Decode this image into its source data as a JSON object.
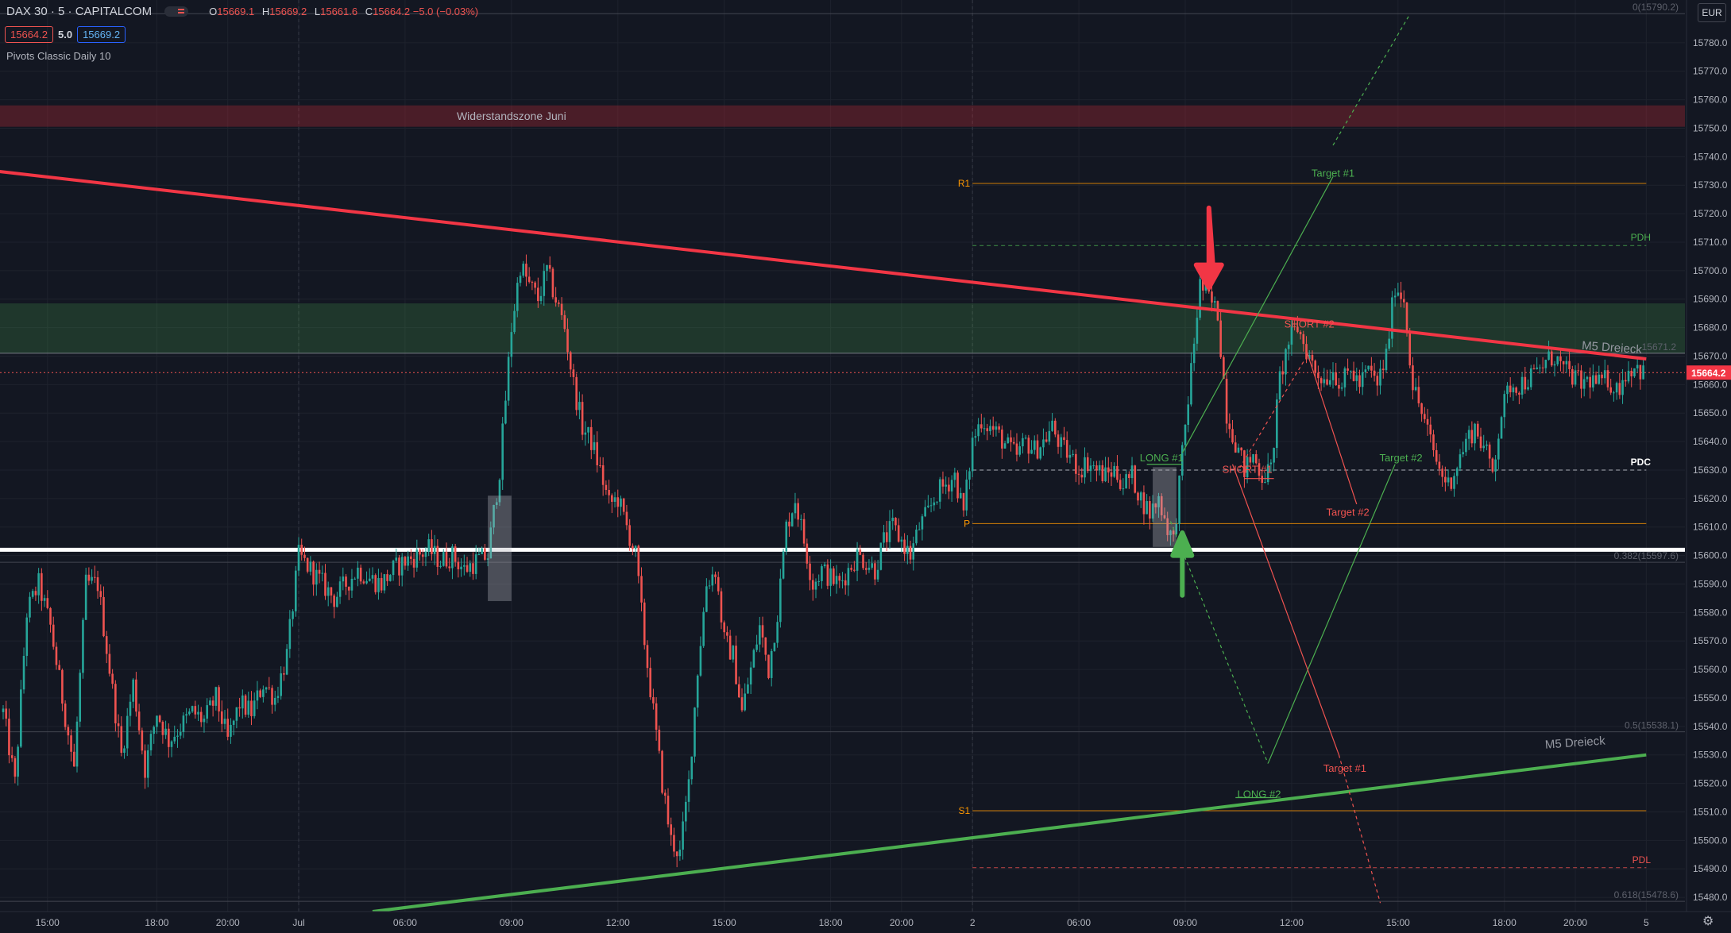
{
  "header": {
    "symbol": "DAX 30 · 5 · CAPITALCOM",
    "open_label": "O",
    "open": "15669.1",
    "high_label": "H",
    "high": "15669.2",
    "low_label": "L",
    "low": "15661.6",
    "close_label": "C",
    "close": "15664.2",
    "change": "−5.0 (−0.03%)",
    "sell": "15664.2",
    "spread": "5.0",
    "buy": "15669.2",
    "indicator": "Pivots Classic Daily 10",
    "currency": "EUR"
  },
  "colors": {
    "background": "#131722",
    "up": "#26a69a",
    "down": "#ef5350",
    "trend_down": "#f23645",
    "trend_up": "#4caf50",
    "pivot": "#ff9800"
  },
  "chart_data": {
    "type": "candlestick",
    "ylim": [
      15475.0,
      15795.0
    ],
    "y_ticks": [
      15480,
      15490,
      15500,
      15510,
      15520,
      15530,
      15540,
      15550,
      15560,
      15570,
      15580,
      15590,
      15600,
      15610,
      15620,
      15630,
      15640,
      15650,
      15660,
      15670,
      15680,
      15690,
      15700,
      15710,
      15720,
      15730,
      15740,
      15750,
      15760,
      15770,
      15780
    ],
    "x_ticks": [
      {
        "bar": 15,
        "label": "15:00"
      },
      {
        "bar": 52,
        "label": "18:00"
      },
      {
        "bar": 76,
        "label": "20:00"
      },
      {
        "bar": 100,
        "label": "Jul"
      },
      {
        "bar": 136,
        "label": "06:00"
      },
      {
        "bar": 172,
        "label": "09:00"
      },
      {
        "bar": 208,
        "label": "12:00"
      },
      {
        "bar": 244,
        "label": "15:00"
      },
      {
        "bar": 280,
        "label": "18:00"
      },
      {
        "bar": 304,
        "label": "20:00"
      },
      {
        "bar": 328,
        "label": "2"
      },
      {
        "bar": 364,
        "label": "06:00"
      },
      {
        "bar": 400,
        "label": "09:00"
      },
      {
        "bar": 436,
        "label": "12:00"
      },
      {
        "bar": 472,
        "label": "15:00"
      },
      {
        "bar": 508,
        "label": "18:00"
      },
      {
        "bar": 532,
        "label": "20:00"
      },
      {
        "bar": 556,
        "label": "5"
      }
    ],
    "price_path": [
      [
        0,
        15545
      ],
      [
        4,
        15520
      ],
      [
        8,
        15580
      ],
      [
        12,
        15590
      ],
      [
        16,
        15575
      ],
      [
        20,
        15550
      ],
      [
        24,
        15525
      ],
      [
        28,
        15590
      ],
      [
        32,
        15590
      ],
      [
        36,
        15560
      ],
      [
        40,
        15530
      ],
      [
        44,
        15555
      ],
      [
        48,
        15525
      ],
      [
        52,
        15545
      ],
      [
        56,
        15535
      ],
      [
        60,
        15540
      ],
      [
        64,
        15545
      ],
      [
        68,
        15542
      ],
      [
        72,
        15550
      ],
      [
        76,
        15535
      ],
      [
        80,
        15548
      ],
      [
        84,
        15545
      ],
      [
        88,
        15555
      ],
      [
        92,
        15550
      ],
      [
        96,
        15565
      ],
      [
        100,
        15600
      ],
      [
        104,
        15595
      ],
      [
        108,
        15590
      ],
      [
        112,
        15585
      ],
      [
        116,
        15590
      ],
      [
        120,
        15595
      ],
      [
        124,
        15592
      ],
      [
        128,
        15590
      ],
      [
        132,
        15595
      ],
      [
        136,
        15598
      ],
      [
        140,
        15600
      ],
      [
        144,
        15602
      ],
      [
        148,
        15598
      ],
      [
        152,
        15600
      ],
      [
        156,
        15595
      ],
      [
        160,
        15598
      ],
      [
        164,
        15600
      ],
      [
        168,
        15630
      ],
      [
        172,
        15680
      ],
      [
        175,
        15702
      ],
      [
        178,
        15695
      ],
      [
        181,
        15690
      ],
      [
        184,
        15700
      ],
      [
        187,
        15690
      ],
      [
        190,
        15680
      ],
      [
        193,
        15660
      ],
      [
        196,
        15645
      ],
      [
        199,
        15640
      ],
      [
        202,
        15630
      ],
      [
        205,
        15618
      ],
      [
        208,
        15620
      ],
      [
        211,
        15610
      ],
      [
        214,
        15600
      ],
      [
        217,
        15570
      ],
      [
        220,
        15545
      ],
      [
        223,
        15520
      ],
      [
        226,
        15500
      ],
      [
        229,
        15495
      ],
      [
        232,
        15520
      ],
      [
        235,
        15560
      ],
      [
        238,
        15590
      ],
      [
        241,
        15595
      ],
      [
        244,
        15570
      ],
      [
        247,
        15565
      ],
      [
        250,
        15545
      ],
      [
        253,
        15560
      ],
      [
        256,
        15575
      ],
      [
        259,
        15560
      ],
      [
        262,
        15580
      ],
      [
        265,
        15610
      ],
      [
        268,
        15620
      ],
      [
        271,
        15605
      ],
      [
        274,
        15590
      ],
      [
        277,
        15595
      ],
      [
        280,
        15592
      ],
      [
        283,
        15590
      ],
      [
        286,
        15595
      ],
      [
        289,
        15600
      ],
      [
        292,
        15598
      ],
      [
        295,
        15595
      ],
      [
        298,
        15605
      ],
      [
        301,
        15610
      ],
      [
        304,
        15605
      ],
      [
        307,
        15600
      ],
      [
        310,
        15610
      ],
      [
        313,
        15615
      ],
      [
        316,
        15622
      ],
      [
        319,
        15625
      ],
      [
        322,
        15628
      ],
      [
        325,
        15615
      ],
      [
        328,
        15640
      ],
      [
        331,
        15648
      ],
      [
        334,
        15645
      ],
      [
        337,
        15642
      ],
      [
        340,
        15638
      ],
      [
        343,
        15635
      ],
      [
        346,
        15640
      ],
      [
        349,
        15637
      ],
      [
        352,
        15640
      ],
      [
        355,
        15645
      ],
      [
        358,
        15638
      ],
      [
        361,
        15635
      ],
      [
        364,
        15630
      ],
      [
        367,
        15633
      ],
      [
        370,
        15630
      ],
      [
        373,
        15628
      ],
      [
        376,
        15630
      ],
      [
        379,
        15625
      ],
      [
        382,
        15628
      ],
      [
        385,
        15620
      ],
      [
        388,
        15615
      ],
      [
        391,
        15620
      ],
      [
        394,
        15610
      ],
      [
        396,
        15605
      ],
      [
        399,
        15635
      ],
      [
        402,
        15665
      ],
      [
        405,
        15695
      ],
      [
        408,
        15690
      ],
      [
        411,
        15685
      ],
      [
        414,
        15650
      ],
      [
        417,
        15640
      ],
      [
        420,
        15630
      ],
      [
        423,
        15635
      ],
      [
        426,
        15628
      ],
      [
        429,
        15630
      ],
      [
        432,
        15662
      ],
      [
        435,
        15675
      ],
      [
        438,
        15680
      ],
      [
        441,
        15672
      ],
      [
        444,
        15665
      ],
      [
        447,
        15662
      ],
      [
        450,
        15665
      ],
      [
        453,
        15660
      ],
      [
        456,
        15665
      ],
      [
        459,
        15660
      ],
      [
        462,
        15665
      ],
      [
        465,
        15660
      ],
      [
        468,
        15670
      ],
      [
        471,
        15695
      ],
      [
        474,
        15690
      ],
      [
        477,
        15660
      ],
      [
        480,
        15650
      ],
      [
        483,
        15640
      ],
      [
        486,
        15630
      ],
      [
        489,
        15625
      ],
      [
        492,
        15632
      ],
      [
        495,
        15640
      ],
      [
        498,
        15645
      ],
      [
        501,
        15638
      ],
      [
        504,
        15630
      ],
      [
        507,
        15650
      ],
      [
        510,
        15660
      ],
      [
        513,
        15660
      ],
      [
        516,
        15662
      ],
      [
        519,
        15664
      ],
      [
        522,
        15668
      ],
      [
        525,
        15670
      ],
      [
        528,
        15665
      ],
      [
        531,
        15663
      ],
      [
        534,
        15660
      ],
      [
        537,
        15662
      ],
      [
        540,
        15660
      ],
      [
        543,
        15662
      ],
      [
        546,
        15658
      ],
      [
        549,
        15664
      ],
      [
        552,
        15667
      ],
      [
        555,
        15664
      ]
    ],
    "horizontal_levels": [
      {
        "label": "R1",
        "value": 15730.6
      },
      {
        "label": "PDH",
        "value": 15708.8
      },
      {
        "label": "PDC",
        "value": 15630.0
      },
      {
        "label": "P",
        "value": 15611.2
      },
      {
        "label": "S1",
        "value": 15510.4
      },
      {
        "label": "PDL",
        "value": 15490.4
      }
    ],
    "fib_levels": [
      {
        "label": "0(15790.2)",
        "value": 15790.2
      },
      {
        "label": "0.382(15597.6)",
        "value": 15597.6
      },
      {
        "label": "0.5(15538.1)",
        "value": 15538.1
      },
      {
        "label": "0.618(15478.6)",
        "value": 15478.6
      }
    ],
    "zones": [
      {
        "label": "Widerstandszone Juni",
        "top": 15758.0,
        "bottom": 15750.5
      },
      {
        "label": "",
        "top": 15688.5,
        "bottom": 15671.0
      }
    ],
    "trendlines": [
      {
        "label": "M5 Dreieck",
        "from": [
          -3,
          15735.0
        ],
        "to": [
          556,
          15669.0
        ],
        "color": "trend_down"
      },
      {
        "label": "M5 Dreieck",
        "from": [
          125,
          15475.0
        ],
        "to": [
          556,
          15530.0
        ],
        "color": "trend_up"
      }
    ],
    "white_line": 15602.0,
    "last_price": 15664.2,
    "last_price_label": "15664.2",
    "resistance_value_label": "15671.2",
    "annotations": [
      {
        "text": "Target #1",
        "bar": 450,
        "value": 15733
      },
      {
        "text": "SHORT #2",
        "bar": 442,
        "value": 15680
      },
      {
        "text": "LONG #1",
        "bar": 392,
        "value": 15633
      },
      {
        "text": "SHORT #1",
        "bar": 421,
        "value": 15629
      },
      {
        "text": "Target #2",
        "bar": 473,
        "value": 15633
      },
      {
        "text": "Target #2",
        "bar": 455,
        "value": 15614
      },
      {
        "text": "LONG #2",
        "bar": 425,
        "value": 15515
      },
      {
        "text": "Target #1",
        "bar": 454,
        "value": 15524
      }
    ]
  }
}
